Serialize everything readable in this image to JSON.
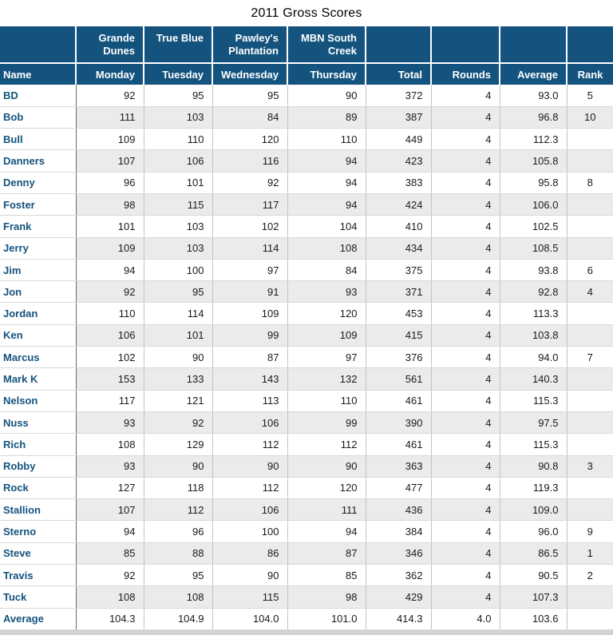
{
  "title": "2011 Gross Scores",
  "table": {
    "course_header": [
      "",
      "Grande Dunes",
      "True Blue",
      "Pawley's Plantation",
      "MBN South Creek",
      "",
      "",
      "",
      ""
    ],
    "columns": [
      "Name",
      "Monday",
      "Tuesday",
      "Wednesday",
      "Thursday",
      "Total",
      "Rounds",
      "Average",
      "Rank"
    ],
    "rows": [
      [
        "BD",
        "92",
        "95",
        "95",
        "90",
        "372",
        "4",
        "93.0",
        "5"
      ],
      [
        "Bob",
        "111",
        "103",
        "84",
        "89",
        "387",
        "4",
        "96.8",
        "10"
      ],
      [
        "Bull",
        "109",
        "110",
        "120",
        "110",
        "449",
        "4",
        "112.3",
        ""
      ],
      [
        "Danners",
        "107",
        "106",
        "116",
        "94",
        "423",
        "4",
        "105.8",
        ""
      ],
      [
        "Denny",
        "96",
        "101",
        "92",
        "94",
        "383",
        "4",
        "95.8",
        "8"
      ],
      [
        "Foster",
        "98",
        "115",
        "117",
        "94",
        "424",
        "4",
        "106.0",
        ""
      ],
      [
        "Frank",
        "101",
        "103",
        "102",
        "104",
        "410",
        "4",
        "102.5",
        ""
      ],
      [
        "Jerry",
        "109",
        "103",
        "114",
        "108",
        "434",
        "4",
        "108.5",
        ""
      ],
      [
        "Jim",
        "94",
        "100",
        "97",
        "84",
        "375",
        "4",
        "93.8",
        "6"
      ],
      [
        "Jon",
        "92",
        "95",
        "91",
        "93",
        "371",
        "4",
        "92.8",
        "4"
      ],
      [
        "Jordan",
        "110",
        "114",
        "109",
        "120",
        "453",
        "4",
        "113.3",
        ""
      ],
      [
        "Ken",
        "106",
        "101",
        "99",
        "109",
        "415",
        "4",
        "103.8",
        ""
      ],
      [
        "Marcus",
        "102",
        "90",
        "87",
        "97",
        "376",
        "4",
        "94.0",
        "7"
      ],
      [
        "Mark K",
        "153",
        "133",
        "143",
        "132",
        "561",
        "4",
        "140.3",
        ""
      ],
      [
        "Nelson",
        "117",
        "121",
        "113",
        "110",
        "461",
        "4",
        "115.3",
        ""
      ],
      [
        "Nuss",
        "93",
        "92",
        "106",
        "99",
        "390",
        "4",
        "97.5",
        ""
      ],
      [
        "Rich",
        "108",
        "129",
        "112",
        "112",
        "461",
        "4",
        "115.3",
        ""
      ],
      [
        "Robby",
        "93",
        "90",
        "90",
        "90",
        "363",
        "4",
        "90.8",
        "3"
      ],
      [
        "Rock",
        "127",
        "118",
        "112",
        "120",
        "477",
        "4",
        "119.3",
        ""
      ],
      [
        "Stallion",
        "107",
        "112",
        "106",
        "111",
        "436",
        "4",
        "109.0",
        ""
      ],
      [
        "Sterno",
        "94",
        "96",
        "100",
        "94",
        "384",
        "4",
        "96.0",
        "9"
      ],
      [
        "Steve",
        "85",
        "88",
        "86",
        "87",
        "346",
        "4",
        "86.5",
        "1"
      ],
      [
        "Travis",
        "92",
        "95",
        "90",
        "85",
        "362",
        "4",
        "90.5",
        "2"
      ],
      [
        "Tuck",
        "108",
        "108",
        "115",
        "98",
        "429",
        "4",
        "107.3",
        ""
      ],
      [
        "Average",
        "104.3",
        "104.9",
        "104.0",
        "101.0",
        "414.3",
        "4.0",
        "103.6",
        ""
      ]
    ]
  },
  "colors": {
    "header_bg": "#14537E",
    "name_text": "#14537E",
    "stripe": "#EBEBEB",
    "row_line": "#D8D8D8",
    "column_line": "#C4C4C4",
    "name_column_line": "#666666",
    "title_text": "#000000",
    "data_text": "#1A1A1A",
    "bottom_strip": "#D3D3D3"
  }
}
